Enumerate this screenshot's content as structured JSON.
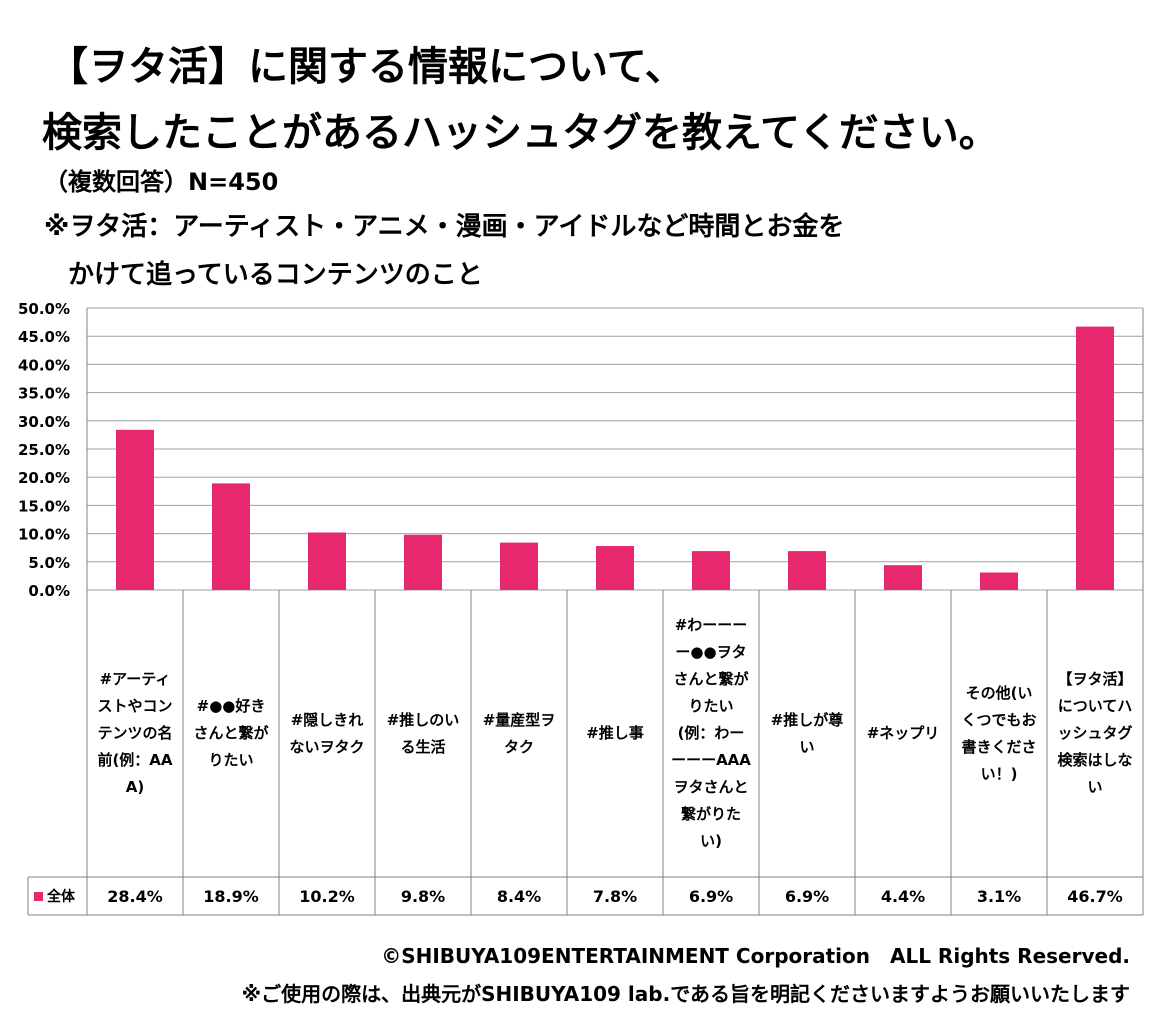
{
  "title_line1": "【ヲタ活】に関する情報について、",
  "title_line2": "検索したことがあるハッシュタグを教えてください。",
  "subtitle": "（複数回答）N=450",
  "note_line1": "※ヲタ活：アーティスト・アニメ・漫画・アイドルなど時間とお金を",
  "note_line2": "かけて追っているコンテンツのこと",
  "legend_label": "全体",
  "colors": {
    "bar": "#e8286e",
    "grid": "#a0a0a0",
    "border": "#808080"
  },
  "footer_line1": "©SHIBUYA109ENTERTAINMENT Corporation　ALL Rights Reserved.",
  "footer_line2": "※ご使用の際は、出典元がSHIBUYA109 lab.である旨を明記くださいますようお願いいたします",
  "chart_data": {
    "type": "bar",
    "title": "【ヲタ活】に関する情報について、検索したことがあるハッシュタグを教えてください。",
    "categories": [
      "#アーティストやコンテンツの名前(例：AAA)",
      "#●●好きさんと繋がりたい",
      "#隠しきれないヲタク",
      "#推しのいる生活",
      "#量産型ヲタク",
      "#推し事",
      "#わーーーー●●ヲタさんと繋がりたい(例：わーーーーAAAヲタさんと繋がりたい)",
      "#推しが尊い",
      "#ネップリ",
      "その他(いくつでもお書きください！)",
      "【ヲタ活】についてハッシュタグ検索はしない"
    ],
    "series": [
      {
        "name": "全体",
        "values": [
          28.4,
          18.9,
          10.2,
          9.8,
          8.4,
          7.8,
          6.9,
          6.9,
          4.4,
          3.1,
          46.7
        ]
      }
    ],
    "value_labels": [
      "28.4%",
      "18.9%",
      "10.2%",
      "9.8%",
      "8.4%",
      "7.8%",
      "6.9%",
      "6.9%",
      "4.4%",
      "3.1%",
      "46.7%"
    ],
    "y_ticks": [
      "0.0%",
      "5.0%",
      "10.0%",
      "15.0%",
      "20.0%",
      "25.0%",
      "30.0%",
      "35.0%",
      "40.0%",
      "45.0%",
      "50.0%"
    ],
    "ylim": [
      0,
      50
    ],
    "xlabel": "",
    "ylabel": "",
    "grid": true
  }
}
